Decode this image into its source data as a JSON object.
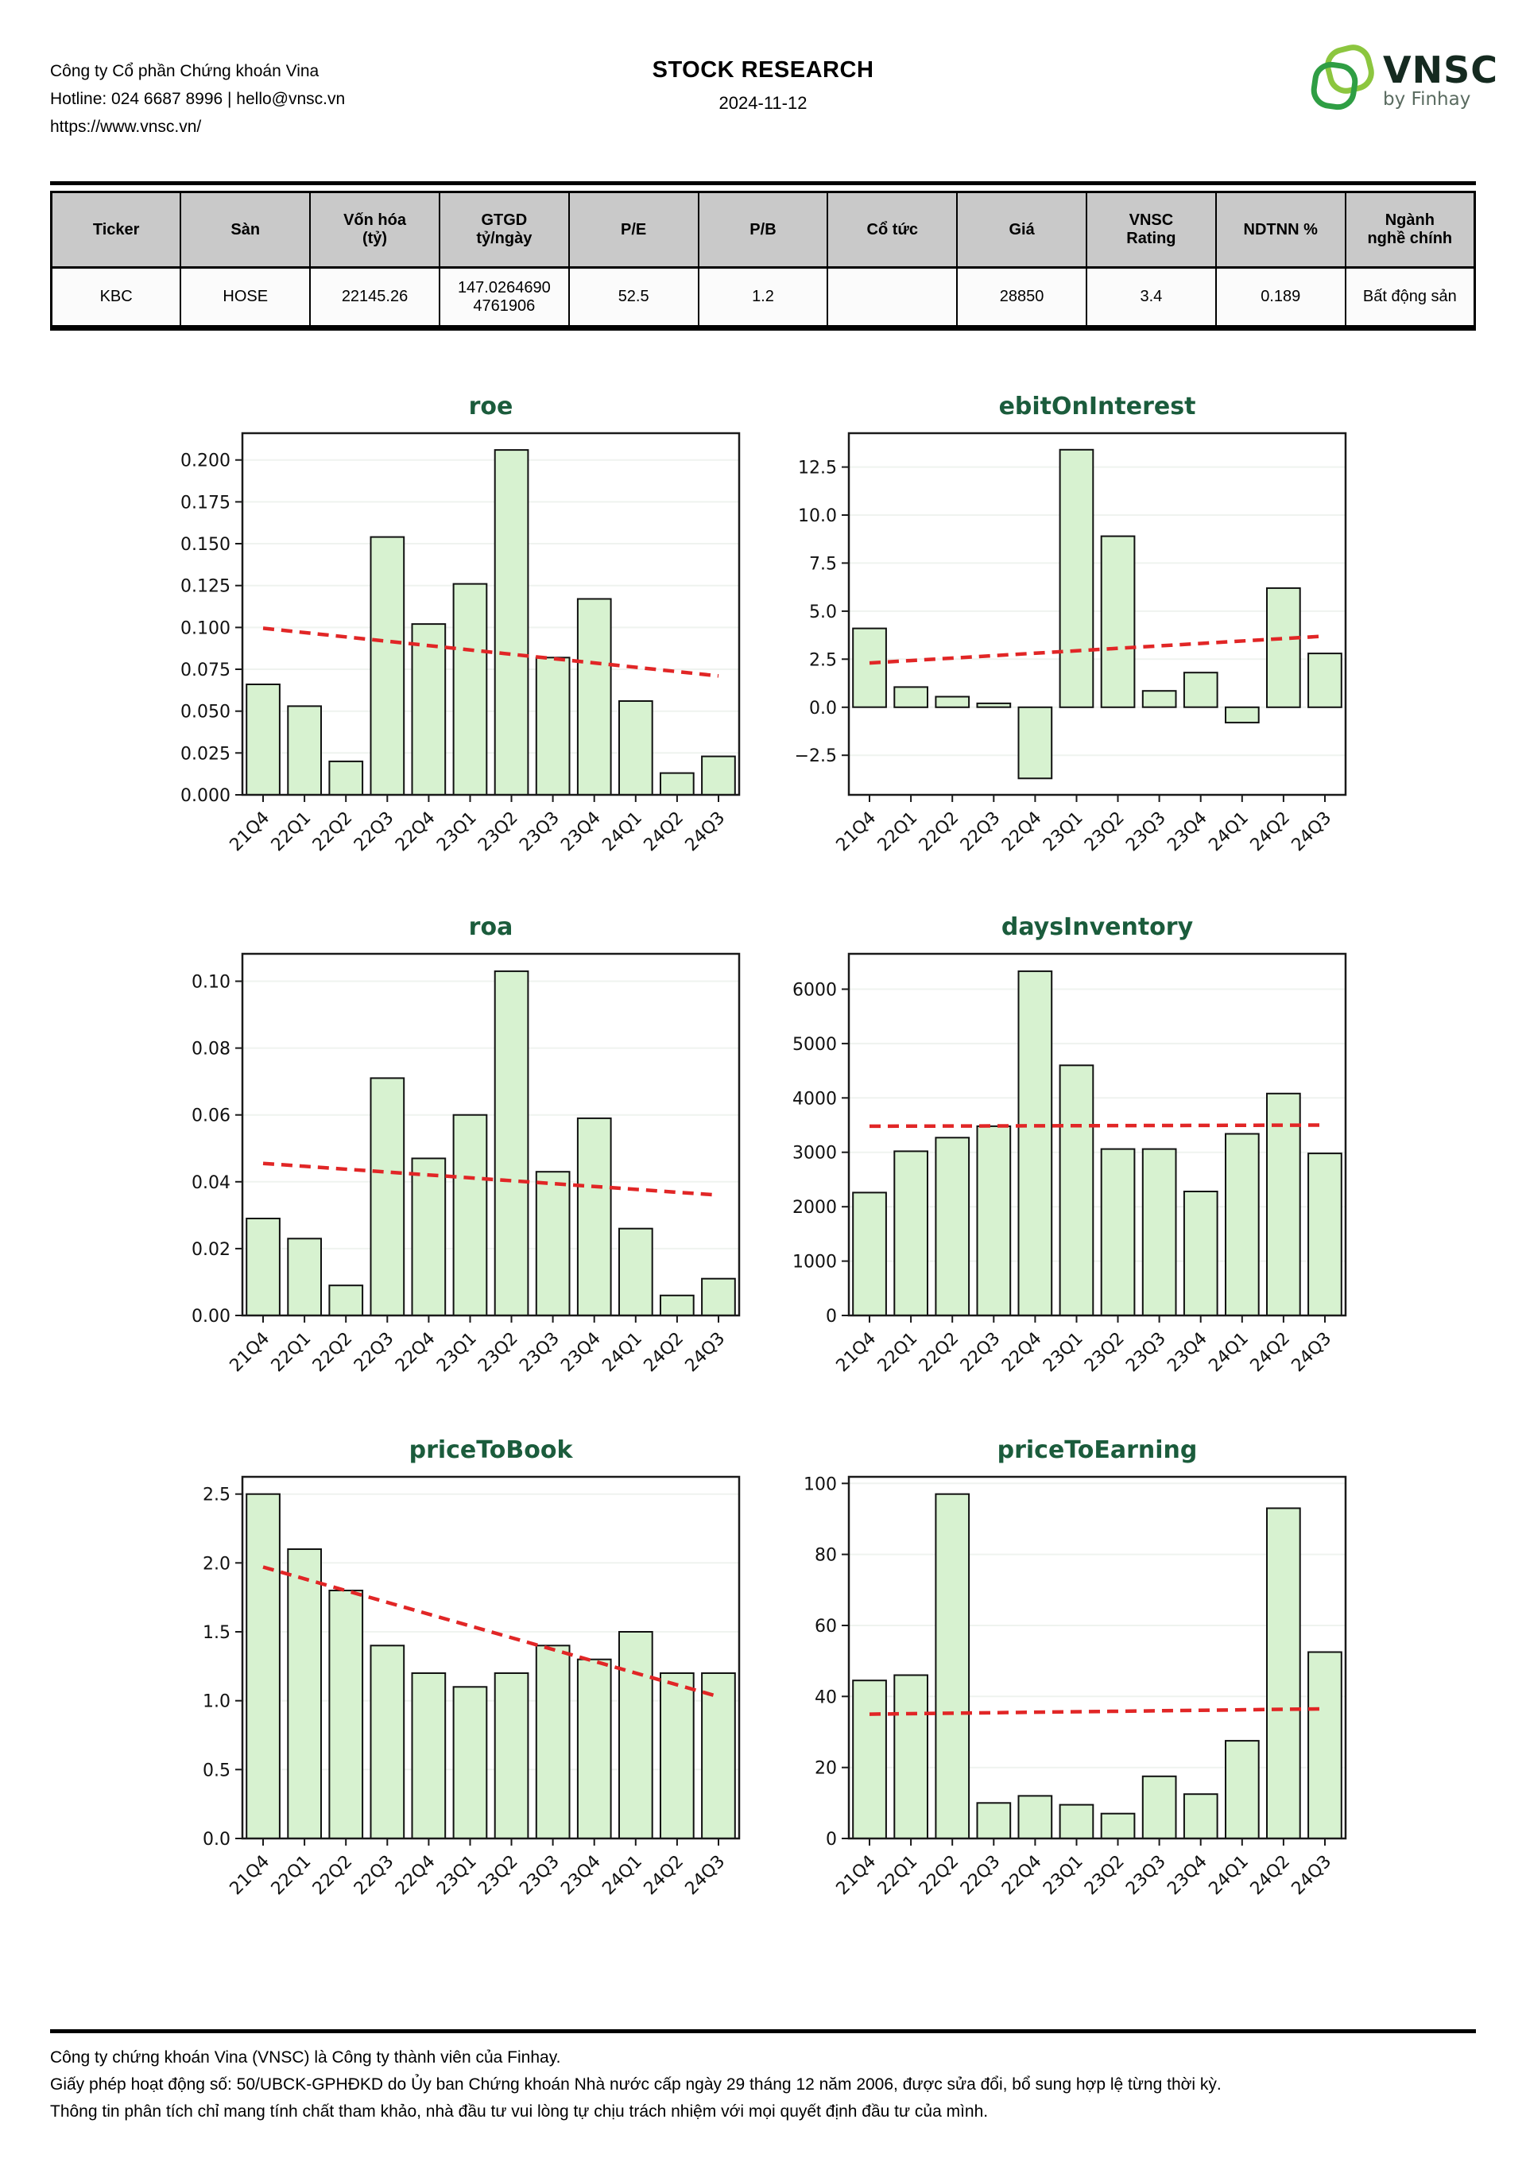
{
  "header": {
    "company_lines": [
      "Công ty Cổ phần Chứng khoán Vina",
      "Hotline: 024 6687 8996 | hello@vnsc.vn",
      "https://www.vnsc.vn/"
    ],
    "title": "STOCK RESEARCH",
    "date": "2024-11-12",
    "logo": {
      "text": "VNSC",
      "subtext": "by Finhay",
      "leaf_light_color": "#8cc63f",
      "leaf_dark_color": "#2f9e44",
      "wordmark_color": "#152a20"
    }
  },
  "table": {
    "headers": [
      "Ticker",
      "Sàn",
      "Vốn hóa\n(tỷ)",
      "GTGD\ntỷ/ngày",
      "P/E",
      "P/B",
      "Cổ tức",
      "Giá",
      "VNSC\nRating",
      "NDTNN %",
      "Ngành\nnghề chính"
    ],
    "rows": [
      [
        "KBC",
        "HOSE",
        "22145.26",
        "147.02646904761906",
        "52.5",
        "1.2",
        "",
        "28850",
        "3.4",
        "0.189",
        "Bất động sản"
      ]
    ]
  },
  "chart_data": [
    {
      "type": "bar",
      "title": "roe",
      "categories": [
        "21Q4",
        "22Q1",
        "22Q2",
        "22Q3",
        "22Q4",
        "23Q1",
        "23Q2",
        "23Q3",
        "23Q4",
        "24Q1",
        "24Q2",
        "24Q3"
      ],
      "values": [
        0.066,
        0.053,
        0.02,
        0.154,
        0.102,
        0.126,
        0.206,
        0.082,
        0.117,
        0.056,
        0.013,
        0.023
      ],
      "yticks": [
        0.0,
        0.025,
        0.05,
        0.075,
        0.1,
        0.125,
        0.15,
        0.175,
        0.2
      ],
      "ytick_decimals": 3,
      "ylim": [
        0,
        0.216
      ],
      "xlabel": "",
      "ylabel": "",
      "grid": true,
      "legend": "none",
      "trendline": {
        "style": "dashed",
        "color": "#e12626",
        "start": 0.0995,
        "end": 0.071
      },
      "bar_color": "#d7f2d0",
      "bar_edge_color": "#111111",
      "title_color": "#1b5c3c"
    },
    {
      "type": "bar",
      "title": "ebitOnInterest",
      "categories": [
        "21Q4",
        "22Q1",
        "22Q2",
        "22Q3",
        "22Q4",
        "23Q1",
        "23Q2",
        "23Q3",
        "23Q4",
        "24Q1",
        "24Q2",
        "24Q3"
      ],
      "values": [
        4.1,
        1.05,
        0.55,
        0.2,
        -3.7,
        13.4,
        8.9,
        0.85,
        1.8,
        -0.8,
        6.2,
        2.8
      ],
      "yticks": [
        -2.5,
        0.0,
        2.5,
        5.0,
        7.5,
        10.0,
        12.5
      ],
      "ytick_decimals": 1,
      "ylim": [
        -4.56,
        14.26
      ],
      "xlabel": "",
      "ylabel": "",
      "grid": true,
      "legend": "none",
      "trendline": {
        "style": "dashed",
        "color": "#e12626",
        "start": 2.3,
        "end": 3.7
      },
      "bar_color": "#d7f2d0",
      "bar_edge_color": "#111111",
      "title_color": "#1b5c3c"
    },
    {
      "type": "bar",
      "title": "roa",
      "categories": [
        "21Q4",
        "22Q1",
        "22Q2",
        "22Q3",
        "22Q4",
        "23Q1",
        "23Q2",
        "23Q3",
        "23Q4",
        "24Q1",
        "24Q2",
        "24Q3"
      ],
      "values": [
        0.029,
        0.023,
        0.009,
        0.071,
        0.047,
        0.06,
        0.103,
        0.043,
        0.059,
        0.026,
        0.006,
        0.011
      ],
      "yticks": [
        0.0,
        0.02,
        0.04,
        0.06,
        0.08,
        0.1
      ],
      "ytick_decimals": 2,
      "ylim": [
        0,
        0.1082
      ],
      "xlabel": "",
      "ylabel": "",
      "grid": true,
      "legend": "none",
      "trendline": {
        "style": "dashed",
        "color": "#e12626",
        "start": 0.0455,
        "end": 0.036
      },
      "bar_color": "#d7f2d0",
      "bar_edge_color": "#111111",
      "title_color": "#1b5c3c"
    },
    {
      "type": "bar",
      "title": "daysInventory",
      "categories": [
        "21Q4",
        "22Q1",
        "22Q2",
        "22Q3",
        "22Q4",
        "23Q1",
        "23Q2",
        "23Q3",
        "23Q4",
        "24Q1",
        "24Q2",
        "24Q3"
      ],
      "values": [
        2260,
        3020,
        3270,
        3480,
        6330,
        4600,
        3060,
        3060,
        2280,
        3340,
        4080,
        2980
      ],
      "yticks": [
        0,
        1000,
        2000,
        3000,
        4000,
        5000,
        6000
      ],
      "ytick_decimals": 0,
      "ylim": [
        0,
        6650
      ],
      "xlabel": "",
      "ylabel": "",
      "grid": true,
      "legend": "none",
      "trendline": {
        "style": "dashed",
        "color": "#e12626",
        "start": 3480,
        "end": 3500
      },
      "bar_color": "#d7f2d0",
      "bar_edge_color": "#111111",
      "title_color": "#1b5c3c"
    },
    {
      "type": "bar",
      "title": "priceToBook",
      "categories": [
        "21Q4",
        "22Q1",
        "22Q2",
        "22Q3",
        "22Q4",
        "23Q1",
        "23Q2",
        "23Q3",
        "23Q4",
        "24Q1",
        "24Q2",
        "24Q3"
      ],
      "values": [
        2.5,
        2.1,
        1.8,
        1.4,
        1.2,
        1.1,
        1.2,
        1.4,
        1.3,
        1.5,
        1.2,
        1.2
      ],
      "yticks": [
        0.0,
        0.5,
        1.0,
        1.5,
        2.0,
        2.5
      ],
      "ytick_decimals": 1,
      "ylim": [
        0,
        2.625
      ],
      "xlabel": "",
      "ylabel": "",
      "grid": true,
      "legend": "none",
      "trendline": {
        "style": "dashed",
        "color": "#e12626",
        "start": 1.97,
        "end": 1.03
      },
      "bar_color": "#d7f2d0",
      "bar_edge_color": "#111111",
      "title_color": "#1b5c3c"
    },
    {
      "type": "bar",
      "title": "priceToEarning",
      "categories": [
        "21Q4",
        "22Q1",
        "22Q2",
        "22Q3",
        "22Q4",
        "23Q1",
        "23Q2",
        "23Q3",
        "23Q4",
        "24Q1",
        "24Q2",
        "24Q3"
      ],
      "values": [
        44.5,
        46,
        97,
        10,
        12,
        9.5,
        7,
        17.5,
        12.5,
        27.5,
        93,
        52.5
      ],
      "yticks": [
        0,
        20,
        40,
        60,
        80,
        100
      ],
      "ytick_decimals": 0,
      "ylim": [
        0,
        101.85
      ],
      "xlabel": "",
      "ylabel": "",
      "grid": true,
      "legend": "none",
      "trendline": {
        "style": "dashed",
        "color": "#e12626",
        "start": 35,
        "end": 36.5
      },
      "bar_color": "#d7f2d0",
      "bar_edge_color": "#111111",
      "title_color": "#1b5c3c"
    }
  ],
  "footer": {
    "lines": [
      "Công ty chứng khoán Vina (VNSC) là Công ty thành viên của Finhay.",
      "Giấy phép hoạt động số: 50/UBCK-GPHĐKD do Ủy ban Chứng khoán Nhà nước cấp ngày 29 tháng 12 năm 2006, được sửa đổi, bổ sung hợp lệ từng thời kỳ.",
      "Thông tin phân tích chỉ mang tính chất tham khảo, nhà đầu tư vui lòng tự chịu trách nhiệm với mọi quyết định đầu tư của mình."
    ]
  }
}
